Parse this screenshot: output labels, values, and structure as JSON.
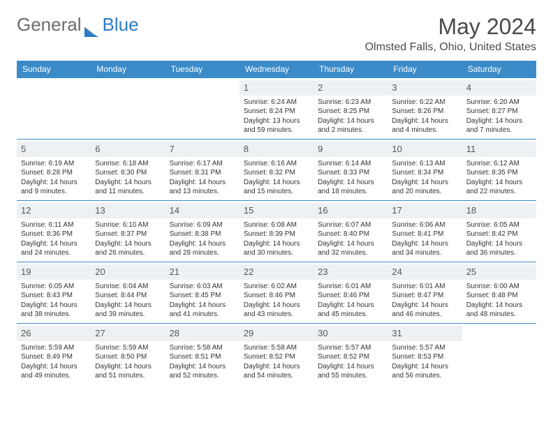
{
  "brand": {
    "part1": "General",
    "part2": "Blue"
  },
  "title": "May 2024",
  "location": "Olmsted Falls, Ohio, United States",
  "colors": {
    "header_bg": "#3b8bc9",
    "header_text": "#ffffff",
    "border": "#3b8bc9",
    "daynum_bg": "#eef1f3",
    "text": "#333333",
    "logo_gray": "#6b6b6b",
    "logo_blue": "#2c7bc4"
  },
  "day_headers": [
    "Sunday",
    "Monday",
    "Tuesday",
    "Wednesday",
    "Thursday",
    "Friday",
    "Saturday"
  ],
  "weeks": [
    [
      null,
      null,
      null,
      {
        "n": "1",
        "sunrise": "6:24 AM",
        "sunset": "8:24 PM",
        "daylight": "13 hours and 59 minutes."
      },
      {
        "n": "2",
        "sunrise": "6:23 AM",
        "sunset": "8:25 PM",
        "daylight": "14 hours and 2 minutes."
      },
      {
        "n": "3",
        "sunrise": "6:22 AM",
        "sunset": "8:26 PM",
        "daylight": "14 hours and 4 minutes."
      },
      {
        "n": "4",
        "sunrise": "6:20 AM",
        "sunset": "8:27 PM",
        "daylight": "14 hours and 7 minutes."
      }
    ],
    [
      {
        "n": "5",
        "sunrise": "6:19 AM",
        "sunset": "8:28 PM",
        "daylight": "14 hours and 9 minutes."
      },
      {
        "n": "6",
        "sunrise": "6:18 AM",
        "sunset": "8:30 PM",
        "daylight": "14 hours and 11 minutes."
      },
      {
        "n": "7",
        "sunrise": "6:17 AM",
        "sunset": "8:31 PM",
        "daylight": "14 hours and 13 minutes."
      },
      {
        "n": "8",
        "sunrise": "6:16 AM",
        "sunset": "8:32 PM",
        "daylight": "14 hours and 15 minutes."
      },
      {
        "n": "9",
        "sunrise": "6:14 AM",
        "sunset": "8:33 PM",
        "daylight": "14 hours and 18 minutes."
      },
      {
        "n": "10",
        "sunrise": "6:13 AM",
        "sunset": "8:34 PM",
        "daylight": "14 hours and 20 minutes."
      },
      {
        "n": "11",
        "sunrise": "6:12 AM",
        "sunset": "8:35 PM",
        "daylight": "14 hours and 22 minutes."
      }
    ],
    [
      {
        "n": "12",
        "sunrise": "6:11 AM",
        "sunset": "8:36 PM",
        "daylight": "14 hours and 24 minutes."
      },
      {
        "n": "13",
        "sunrise": "6:10 AM",
        "sunset": "8:37 PM",
        "daylight": "14 hours and 26 minutes."
      },
      {
        "n": "14",
        "sunrise": "6:09 AM",
        "sunset": "8:38 PM",
        "daylight": "14 hours and 28 minutes."
      },
      {
        "n": "15",
        "sunrise": "6:08 AM",
        "sunset": "8:39 PM",
        "daylight": "14 hours and 30 minutes."
      },
      {
        "n": "16",
        "sunrise": "6:07 AM",
        "sunset": "8:40 PM",
        "daylight": "14 hours and 32 minutes."
      },
      {
        "n": "17",
        "sunrise": "6:06 AM",
        "sunset": "8:41 PM",
        "daylight": "14 hours and 34 minutes."
      },
      {
        "n": "18",
        "sunrise": "6:05 AM",
        "sunset": "8:42 PM",
        "daylight": "14 hours and 36 minutes."
      }
    ],
    [
      {
        "n": "19",
        "sunrise": "6:05 AM",
        "sunset": "8:43 PM",
        "daylight": "14 hours and 38 minutes."
      },
      {
        "n": "20",
        "sunrise": "6:04 AM",
        "sunset": "8:44 PM",
        "daylight": "14 hours and 39 minutes."
      },
      {
        "n": "21",
        "sunrise": "6:03 AM",
        "sunset": "8:45 PM",
        "daylight": "14 hours and 41 minutes."
      },
      {
        "n": "22",
        "sunrise": "6:02 AM",
        "sunset": "8:46 PM",
        "daylight": "14 hours and 43 minutes."
      },
      {
        "n": "23",
        "sunrise": "6:01 AM",
        "sunset": "8:46 PM",
        "daylight": "14 hours and 45 minutes."
      },
      {
        "n": "24",
        "sunrise": "6:01 AM",
        "sunset": "8:47 PM",
        "daylight": "14 hours and 46 minutes."
      },
      {
        "n": "25",
        "sunrise": "6:00 AM",
        "sunset": "8:48 PM",
        "daylight": "14 hours and 48 minutes."
      }
    ],
    [
      {
        "n": "26",
        "sunrise": "5:59 AM",
        "sunset": "8:49 PM",
        "daylight": "14 hours and 49 minutes."
      },
      {
        "n": "27",
        "sunrise": "5:59 AM",
        "sunset": "8:50 PM",
        "daylight": "14 hours and 51 minutes."
      },
      {
        "n": "28",
        "sunrise": "5:58 AM",
        "sunset": "8:51 PM",
        "daylight": "14 hours and 52 minutes."
      },
      {
        "n": "29",
        "sunrise": "5:58 AM",
        "sunset": "8:52 PM",
        "daylight": "14 hours and 54 minutes."
      },
      {
        "n": "30",
        "sunrise": "5:57 AM",
        "sunset": "8:52 PM",
        "daylight": "14 hours and 55 minutes."
      },
      {
        "n": "31",
        "sunrise": "5:57 AM",
        "sunset": "8:53 PM",
        "daylight": "14 hours and 56 minutes."
      },
      null
    ]
  ],
  "labels": {
    "sunrise_prefix": "Sunrise: ",
    "sunset_prefix": "Sunset: ",
    "daylight_prefix": "Daylight: "
  }
}
